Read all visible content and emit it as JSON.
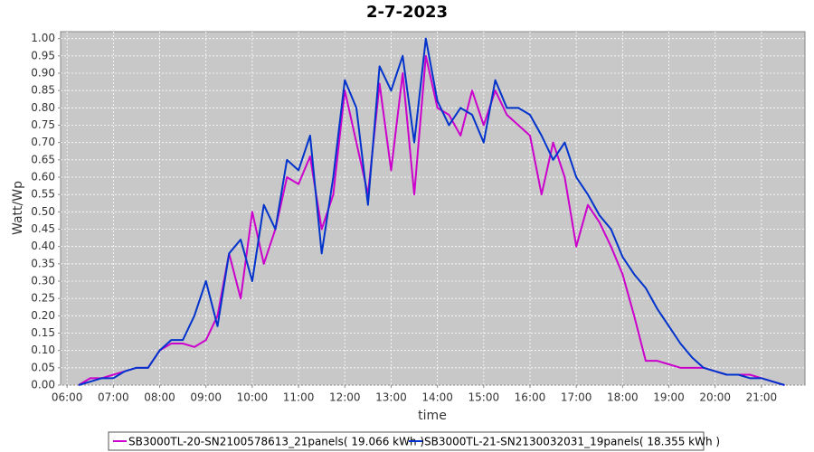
{
  "chart_data": {
    "type": "line",
    "title": "2-7-2023",
    "x_label": "time",
    "y_label": "Watt/Wp",
    "x": [
      6.25,
      6.5,
      6.75,
      7,
      7.25,
      7.5,
      7.75,
      8,
      8.25,
      8.5,
      8.75,
      9,
      9.25,
      9.5,
      9.75,
      10,
      10.25,
      10.5,
      10.75,
      11,
      11.25,
      11.5,
      11.75,
      12,
      12.25,
      12.5,
      12.75,
      13,
      13.25,
      13.5,
      13.75,
      14,
      14.25,
      14.5,
      14.75,
      15,
      15.25,
      15.5,
      15.75,
      16,
      16.25,
      16.5,
      16.75,
      17,
      17.25,
      17.5,
      17.75,
      18,
      18.25,
      18.5,
      18.75,
      19,
      19.25,
      19.5,
      19.75,
      20,
      20.25,
      20.5,
      20.75,
      21,
      21.25,
      21.5
    ],
    "series": [
      {
        "name": "SB3000TL-20-SN2100578613_21panels( 19.066 kWh )",
        "color": "#cc00cc",
        "values": [
          0.0,
          0.02,
          0.02,
          0.03,
          0.04,
          0.05,
          0.05,
          0.1,
          0.12,
          0.12,
          0.11,
          0.13,
          0.2,
          0.38,
          0.25,
          0.5,
          0.35,
          0.45,
          0.6,
          0.58,
          0.66,
          0.45,
          0.55,
          0.85,
          0.7,
          0.55,
          0.87,
          0.62,
          0.9,
          0.55,
          0.95,
          0.8,
          0.78,
          0.72,
          0.85,
          0.75,
          0.85,
          0.78,
          0.75,
          0.72,
          0.55,
          0.7,
          0.6,
          0.4,
          0.52,
          0.47,
          0.4,
          0.32,
          0.2,
          0.07,
          0.07,
          0.06,
          0.05,
          0.05,
          0.05,
          0.04,
          0.03,
          0.03,
          0.03,
          0.02,
          0.01,
          0.0
        ]
      },
      {
        "name": "SB3000TL-21-SN2130032031_19panels( 18.355 kWh )",
        "color": "#0033cc",
        "values": [
          0.0,
          0.01,
          0.02,
          0.02,
          0.04,
          0.05,
          0.05,
          0.1,
          0.13,
          0.13,
          0.2,
          0.3,
          0.17,
          0.38,
          0.42,
          0.3,
          0.52,
          0.45,
          0.65,
          0.62,
          0.72,
          0.38,
          0.6,
          0.88,
          0.8,
          0.52,
          0.92,
          0.85,
          0.95,
          0.7,
          1.0,
          0.82,
          0.75,
          0.8,
          0.78,
          0.7,
          0.88,
          0.8,
          0.8,
          0.78,
          0.72,
          0.65,
          0.7,
          0.6,
          0.55,
          0.49,
          0.45,
          0.37,
          0.32,
          0.28,
          0.22,
          0.17,
          0.12,
          0.08,
          0.05,
          0.04,
          0.03,
          0.03,
          0.02,
          0.02,
          0.01,
          0.0
        ]
      }
    ],
    "xlim": [
      5.86,
      21.94
    ],
    "xticks": [
      {
        "value": 6,
        "label": "06:00"
      },
      {
        "value": 7,
        "label": "07:00"
      },
      {
        "value": 8,
        "label": "08:00"
      },
      {
        "value": 9,
        "label": "09:00"
      },
      {
        "value": 10,
        "label": "10:00"
      },
      {
        "value": 11,
        "label": "11:00"
      },
      {
        "value": 12,
        "label": "12:00"
      },
      {
        "value": 13,
        "label": "13:00"
      },
      {
        "value": 14,
        "label": "14:00"
      },
      {
        "value": 15,
        "label": "15:00"
      },
      {
        "value": 16,
        "label": "16:00"
      },
      {
        "value": 17,
        "label": "17:00"
      },
      {
        "value": 18,
        "label": "18:00"
      },
      {
        "value": 19,
        "label": "19:00"
      },
      {
        "value": 20,
        "label": "20:00"
      },
      {
        "value": 21,
        "label": "21:00"
      }
    ],
    "ylim": [
      0,
      1.02
    ],
    "yticks": [
      {
        "value": 0,
        "label": "0.00"
      },
      {
        "value": 0.05,
        "label": "0.05"
      },
      {
        "value": 0.1,
        "label": "0.10"
      },
      {
        "value": 0.15,
        "label": "0.15"
      },
      {
        "value": 0.2,
        "label": "0.20"
      },
      {
        "value": 0.25,
        "label": "0.25"
      },
      {
        "value": 0.3,
        "label": "0.30"
      },
      {
        "value": 0.35,
        "label": "0.35"
      },
      {
        "value": 0.4,
        "label": "0.40"
      },
      {
        "value": 0.45,
        "label": "0.45"
      },
      {
        "value": 0.5,
        "label": "0.50"
      },
      {
        "value": 0.55,
        "label": "0.55"
      },
      {
        "value": 0.6,
        "label": "0.60"
      },
      {
        "value": 0.65,
        "label": "0.65"
      },
      {
        "value": 0.7,
        "label": "0.70"
      },
      {
        "value": 0.75,
        "label": "0.75"
      },
      {
        "value": 0.8,
        "label": "0.80"
      },
      {
        "value": 0.85,
        "label": "0.85"
      },
      {
        "value": 0.9,
        "label": "0.90"
      },
      {
        "value": 0.95,
        "label": "0.95"
      },
      {
        "value": 1,
        "label": "1.00"
      }
    ],
    "grid": true
  }
}
